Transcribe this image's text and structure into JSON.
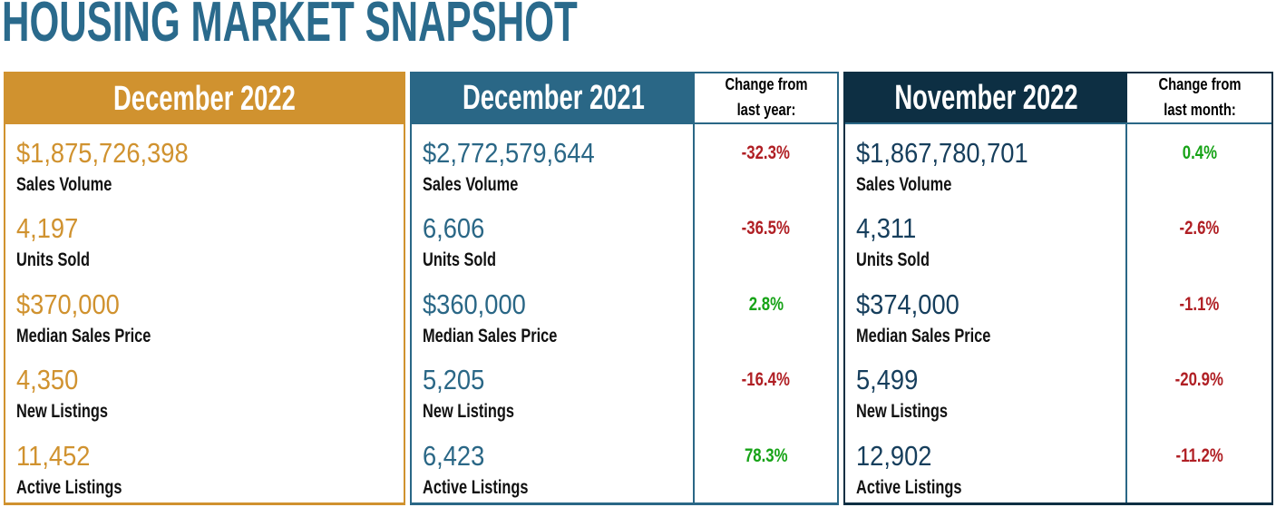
{
  "title": "HOUSING MARKET SNAPSHOT",
  "colors": {
    "gold": "#D0922F",
    "teal": "#2A6786",
    "navy": "#0D2F43",
    "red": "#B01F24",
    "green": "#17A317",
    "title_text": "#2A6A8C"
  },
  "metric_labels": [
    "Sales Volume",
    "Units Sold",
    "Median Sales Price",
    "New Listings",
    "Active Listings"
  ],
  "panels": [
    {
      "header": "December 2022",
      "values": [
        "$1,875,726,398",
        "4,197",
        "$370,000",
        "4,350",
        "11,452"
      ]
    },
    {
      "header": "December 2021",
      "change_header": "Change from last year:",
      "values": [
        "$2,772,579,644",
        "6,606",
        "$360,000",
        "5,205",
        "6,423"
      ],
      "changes": [
        {
          "text": "-32.3%",
          "dir": "down"
        },
        {
          "text": "-36.5%",
          "dir": "down"
        },
        {
          "text": "2.8%",
          "dir": "up"
        },
        {
          "text": "-16.4%",
          "dir": "down"
        },
        {
          "text": "78.3%",
          "dir": "up"
        }
      ]
    },
    {
      "header": "November 2022",
      "change_header": "Change from last month:",
      "values": [
        "$1,867,780,701",
        "4,311",
        "$374,000",
        "5,499",
        "12,902"
      ],
      "changes": [
        {
          "text": "0.4%",
          "dir": "up"
        },
        {
          "text": "-2.6%",
          "dir": "down"
        },
        {
          "text": "-1.1%",
          "dir": "down"
        },
        {
          "text": "-20.9%",
          "dir": "down"
        },
        {
          "text": "-11.2%",
          "dir": "down"
        }
      ]
    }
  ],
  "chart_data": {
    "type": "table",
    "title": "HOUSING MARKET SNAPSHOT",
    "row_labels": [
      "Sales Volume",
      "Units Sold",
      "Median Sales Price",
      "New Listings",
      "Active Listings"
    ],
    "columns": [
      {
        "name": "December 2022",
        "values": [
          1875726398,
          4197,
          370000,
          4350,
          11452
        ]
      },
      {
        "name": "December 2021",
        "values": [
          2772579644,
          6606,
          360000,
          5205,
          6423
        ],
        "change_from_last_year_pct": [
          -32.3,
          -36.5,
          2.8,
          -16.4,
          78.3
        ]
      },
      {
        "name": "November 2022",
        "values": [
          1867780701,
          4311,
          374000,
          5499,
          12902
        ],
        "change_from_last_month_pct": [
          0.4,
          -2.6,
          -1.1,
          -20.9,
          -11.2
        ]
      }
    ]
  }
}
